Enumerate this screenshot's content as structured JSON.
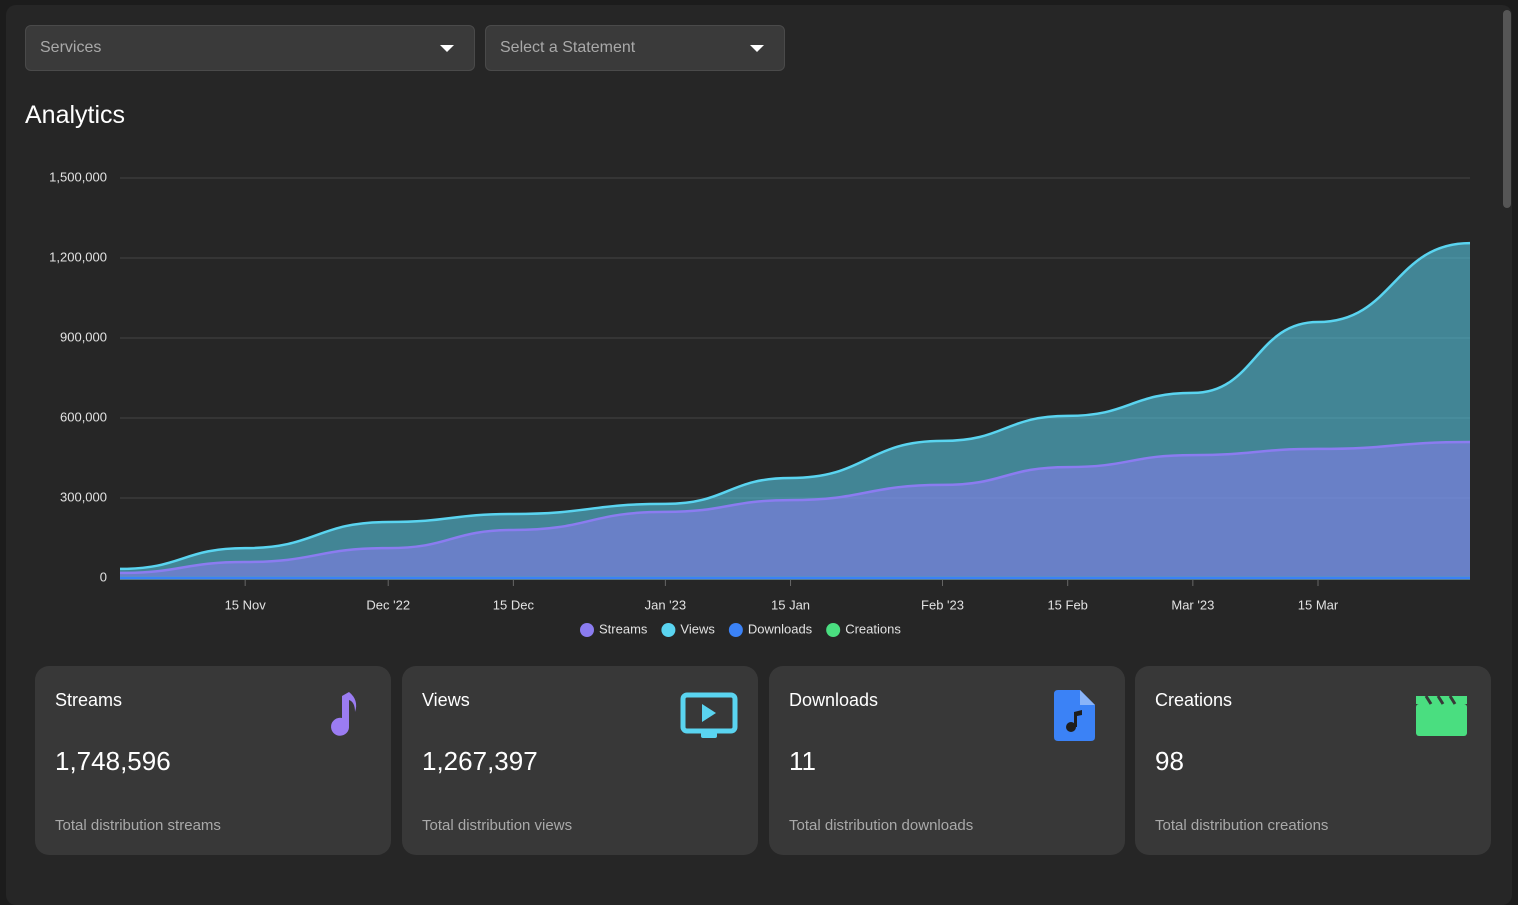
{
  "filters": [
    "Services",
    "Select a Statement"
  ],
  "heading": "Analytics",
  "chart_data": {
    "type": "area",
    "x": [
      "2022-11-01",
      "2022-11-15",
      "2022-12-01",
      "2022-12-15",
      "2023-01-01",
      "2023-01-15",
      "2023-02-01",
      "2023-02-15",
      "2023-03-01",
      "2023-03-15",
      "2023-04-01"
    ],
    "series": [
      {
        "name": "Streams",
        "color": "#8b7cf0",
        "values": [
          19000,
          60000,
          112000,
          180000,
          248000,
          292000,
          349000,
          416000,
          461000,
          484000,
          510000
        ]
      },
      {
        "name": "Views",
        "color": "#5ad4f0",
        "values": [
          34000,
          112000,
          210000,
          240000,
          278000,
          375000,
          514000,
          608000,
          694000,
          960000,
          1256000
        ]
      },
      {
        "name": "Downloads",
        "color": "#3b82f6",
        "values": [
          0,
          0,
          1,
          1,
          2,
          3,
          4,
          5,
          7,
          9,
          11
        ]
      },
      {
        "name": "Creations",
        "color": "#4ade80",
        "values": [
          0,
          5,
          10,
          20,
          30,
          40,
          50,
          60,
          75,
          85,
          98
        ]
      }
    ],
    "xlim": [
      "2022-11-01",
      "2023-04-01"
    ],
    "xticks": [
      {
        "value": "2022-11-15",
        "label": "15 Nov"
      },
      {
        "value": "2022-12-01",
        "label": "Dec '22"
      },
      {
        "value": "2022-12-15",
        "label": "15 Dec"
      },
      {
        "value": "2023-01-01",
        "label": "Jan '23"
      },
      {
        "value": "2023-01-15",
        "label": "15 Jan"
      },
      {
        "value": "2023-02-01",
        "label": "Feb '23"
      },
      {
        "value": "2023-02-15",
        "label": "15 Feb"
      },
      {
        "value": "2023-03-01",
        "label": "Mar '23"
      },
      {
        "value": "2023-03-15",
        "label": "15 Mar"
      }
    ],
    "ylim": [
      0,
      1500000
    ],
    "yticks": [
      0,
      {
        "value": 300000,
        "label": "300,000"
      },
      {
        "value": 600000,
        "label": "600,000"
      },
      {
        "value": 900000,
        "label": "900,000"
      },
      {
        "value": 1200000,
        "label": "1,200,000"
      },
      {
        "value": 1500000,
        "label": "1,500,000"
      }
    ],
    "grid": true,
    "legend": "bottom"
  },
  "cards": [
    {
      "title": "Streams",
      "value": "1,748,596",
      "caption": "Total distribution streams"
    },
    {
      "title": "Views",
      "value": "1,267,397",
      "caption": "Total distribution views"
    },
    {
      "title": "Downloads",
      "value": "11",
      "caption": "Total distribution downloads"
    },
    {
      "title": "Creations",
      "value": "98",
      "caption": "Total distribution creations"
    }
  ]
}
